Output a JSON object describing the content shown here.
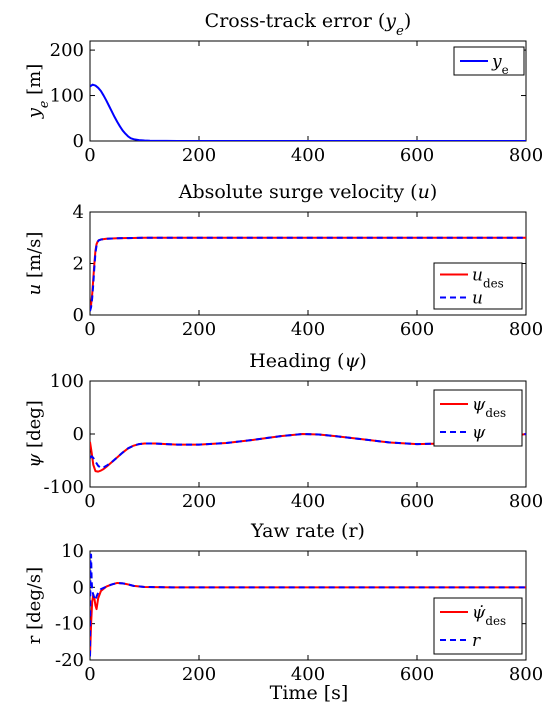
{
  "figure": {
    "xlabel": "Time [s]"
  },
  "chart_data": [
    {
      "type": "line",
      "title": "Cross-track error (yₑ)",
      "title_parts": [
        "Cross-track error (",
        "y",
        "e",
        ")"
      ],
      "ylabel_parts": [
        "y",
        "e",
        " [m]"
      ],
      "xlim": [
        0,
        800
      ],
      "ylim": [
        0,
        220
      ],
      "xticks": [
        0,
        200,
        400,
        600,
        800
      ],
      "yticks": [
        0,
        100,
        200
      ],
      "legend_position": "top-right",
      "series": [
        {
          "name": "yₑ",
          "name_parts": [
            "y",
            "e"
          ],
          "color": "#0000ff",
          "dash": "solid",
          "x": [
            0,
            5,
            10,
            15,
            20,
            25,
            30,
            35,
            40,
            45,
            50,
            55,
            60,
            65,
            70,
            75,
            80,
            90,
            100,
            110,
            120,
            140,
            160,
            200,
            300,
            400,
            500,
            600,
            700,
            800
          ],
          "y": [
            120,
            124,
            122,
            117,
            110,
            100,
            89,
            77,
            65,
            53,
            42,
            32,
            23,
            16,
            10,
            6,
            4,
            2,
            1,
            0.5,
            0.3,
            0.2,
            0.1,
            0,
            0,
            0,
            0,
            0,
            0,
            0
          ]
        }
      ]
    },
    {
      "type": "line",
      "title": "Absolute surge velocity (u)",
      "title_parts": [
        "Absolute surge velocity (",
        "u",
        "",
        ")"
      ],
      "ylabel_parts": [
        "u",
        "",
        " [m/s]"
      ],
      "xlim": [
        0,
        800
      ],
      "ylim": [
        0,
        4
      ],
      "xticks": [
        0,
        200,
        400,
        600,
        800
      ],
      "yticks": [
        0,
        2,
        4
      ],
      "legend_position": "bottom-right",
      "series": [
        {
          "name": "u_des",
          "name_parts": [
            "u",
            "des"
          ],
          "color": "#ff0000",
          "dash": "solid",
          "x": [
            0,
            2,
            4,
            6,
            8,
            10,
            12,
            14,
            16,
            20,
            30,
            50,
            100,
            200,
            400,
            600,
            800
          ],
          "y": [
            0.2,
            0.4,
            0.8,
            1.4,
            2.0,
            2.5,
            2.75,
            2.85,
            2.9,
            2.93,
            2.96,
            2.98,
            3.0,
            3.0,
            3.0,
            3.0,
            3.0
          ]
        },
        {
          "name": "u",
          "name_parts": [
            "u",
            ""
          ],
          "color": "#0000ff",
          "dash": "dashed",
          "x": [
            0,
            2,
            4,
            6,
            8,
            10,
            12,
            14,
            16,
            20,
            30,
            50,
            100,
            200,
            400,
            600,
            800
          ],
          "y": [
            0.15,
            0.3,
            0.65,
            1.2,
            1.85,
            2.4,
            2.7,
            2.84,
            2.9,
            2.93,
            2.96,
            2.98,
            3.0,
            3.0,
            3.0,
            3.0,
            3.0
          ]
        }
      ]
    },
    {
      "type": "line",
      "title": "Heading (ψ)",
      "title_parts": [
        "Heading (",
        "ψ",
        "",
        ")"
      ],
      "ylabel_parts": [
        "ψ",
        "",
        " [deg]"
      ],
      "xlim": [
        0,
        800
      ],
      "ylim": [
        -100,
        100
      ],
      "xticks": [
        0,
        200,
        400,
        600,
        800
      ],
      "yticks": [
        -100,
        0,
        100
      ],
      "legend_position": "top-right",
      "series": [
        {
          "name": "ψ_des",
          "name_parts": [
            "ψ",
            "des"
          ],
          "color": "#ff0000",
          "dash": "solid",
          "x": [
            0,
            3,
            6,
            10,
            15,
            20,
            25,
            30,
            40,
            50,
            60,
            70,
            80,
            90,
            100,
            120,
            140,
            160,
            200,
            250,
            300,
            350,
            390,
            420,
            450,
            500,
            550,
            600,
            650,
            700,
            750,
            800
          ],
          "y": [
            -15,
            -35,
            -58,
            -70,
            -71,
            -69,
            -66,
            -62,
            -53,
            -44,
            -35,
            -27,
            -22,
            -19,
            -18,
            -18,
            -19,
            -20,
            -20,
            -17,
            -11,
            -4,
            0,
            -1,
            -4,
            -10,
            -16,
            -19,
            -18,
            -14,
            -8,
            0
          ]
        },
        {
          "name": "ψ",
          "name_parts": [
            "ψ",
            ""
          ],
          "color": "#0000ff",
          "dash": "dashed",
          "x": [
            0,
            3,
            6,
            10,
            15,
            20,
            25,
            30,
            40,
            50,
            60,
            70,
            80,
            90,
            100,
            120,
            140,
            160,
            200,
            250,
            300,
            350,
            390,
            420,
            450,
            500,
            550,
            600,
            650,
            700,
            750,
            800
          ],
          "y": [
            -45,
            -42,
            -45,
            -52,
            -60,
            -64,
            -63,
            -60,
            -53,
            -44,
            -35,
            -27,
            -22,
            -19,
            -18,
            -18,
            -19,
            -20,
            -20,
            -17,
            -11,
            -4,
            0,
            -1,
            -4,
            -10,
            -16,
            -19,
            -18,
            -14,
            -8,
            0
          ]
        }
      ]
    },
    {
      "type": "line",
      "title": "Yaw rate (r)",
      "title_parts": [
        "Yaw rate (r)",
        "",
        "",
        ""
      ],
      "ylabel_parts": [
        "r [deg/s]",
        "",
        ""
      ],
      "xlim": [
        0,
        800
      ],
      "ylim": [
        -20,
        10
      ],
      "xticks": [
        0,
        200,
        400,
        600,
        800
      ],
      "yticks": [
        -20,
        -10,
        0,
        10
      ],
      "legend_position": "bottom-right",
      "series": [
        {
          "name": "ψ̇_des",
          "name_parts": [
            "ψ̇",
            "des"
          ],
          "color": "#ff0000",
          "dash": "solid",
          "x": [
            0,
            2,
            4,
            6,
            8,
            10,
            12,
            15,
            20,
            30,
            40,
            50,
            60,
            70,
            80,
            100,
            150,
            200,
            300,
            400,
            500,
            600,
            700,
            800
          ],
          "y": [
            -19,
            -10,
            -4,
            -2,
            -3,
            -5,
            -6,
            -3,
            -1,
            0.2,
            0.8,
            1.2,
            1.1,
            0.8,
            0.4,
            0.1,
            0,
            0,
            0,
            0,
            0,
            0,
            0,
            0
          ]
        },
        {
          "name": "r",
          "name_parts": [
            "r",
            ""
          ],
          "color": "#0000ff",
          "dash": "dashed",
          "x": [
            0,
            1,
            2,
            3,
            4,
            6,
            8,
            10,
            12,
            15,
            20,
            30,
            40,
            50,
            60,
            70,
            80,
            100,
            150,
            200,
            300,
            400,
            500,
            600,
            700,
            800
          ],
          "y": [
            -19,
            9,
            9,
            2,
            -1,
            -2,
            -3,
            -3.5,
            -2.5,
            -1.5,
            -0.5,
            0.2,
            0.8,
            1.2,
            1.1,
            0.8,
            0.4,
            0.1,
            0,
            0,
            0,
            0,
            0,
            0,
            0,
            0
          ]
        }
      ]
    }
  ]
}
